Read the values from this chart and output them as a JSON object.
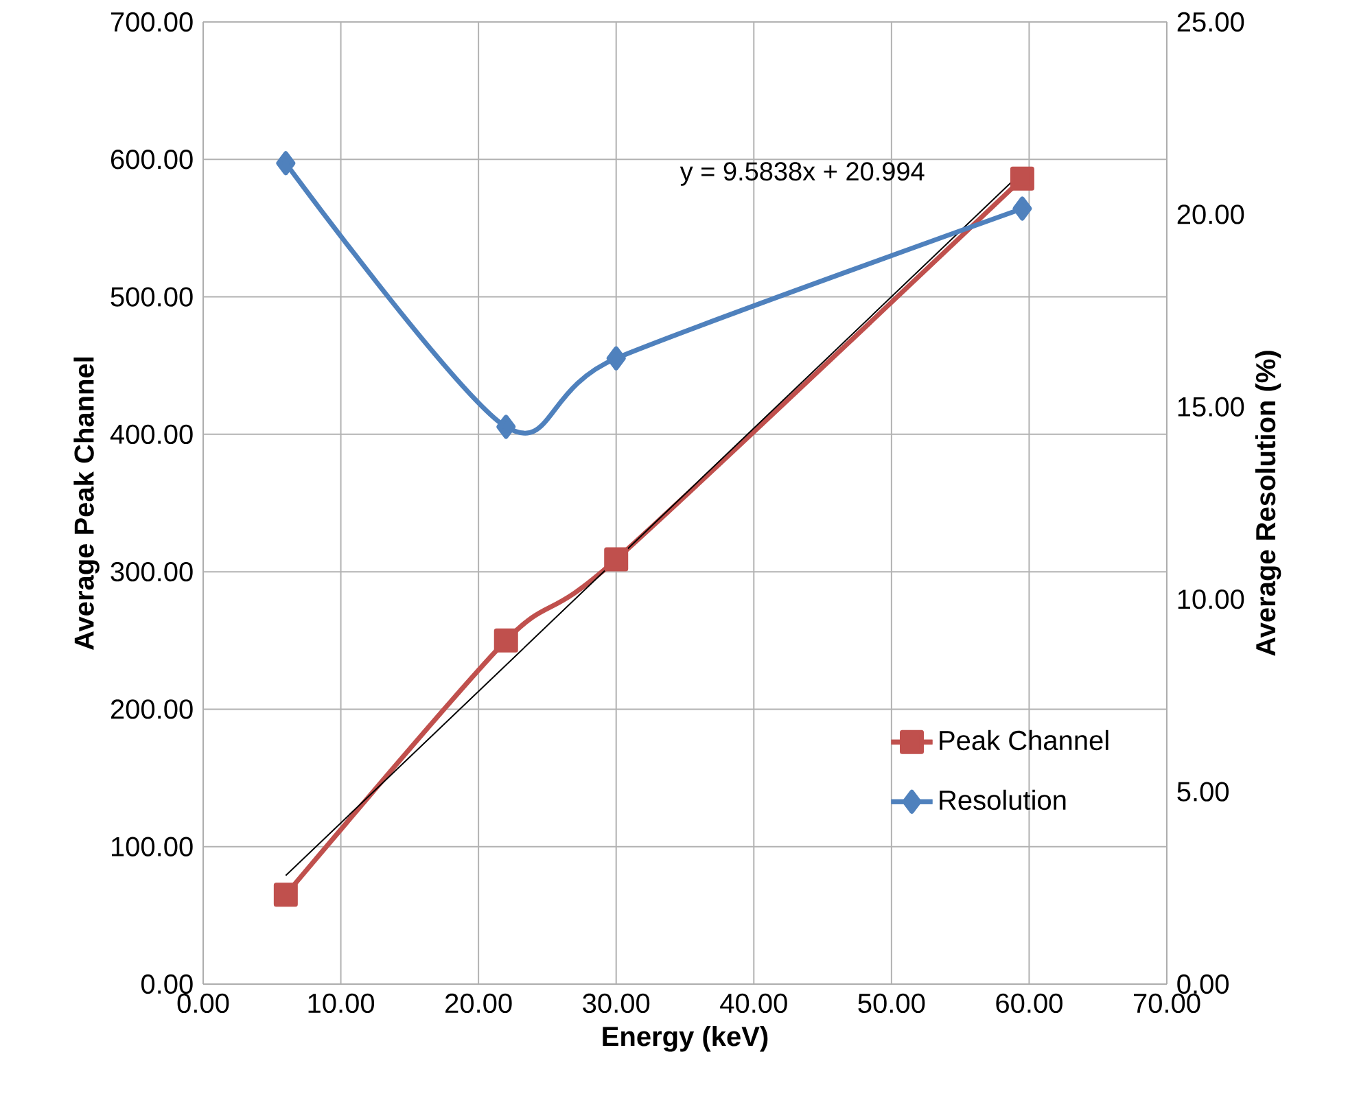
{
  "chart_data": {
    "type": "line",
    "xlabel": "Energy (keV)",
    "ylabel": "Average Peak Channel",
    "y2label": "Average Resolution (%)",
    "xlim": [
      0,
      70
    ],
    "ylim": [
      0,
      700
    ],
    "y2lim": [
      0,
      25
    ],
    "xticks": [
      {
        "value": 0,
        "label": "0.00"
      },
      {
        "value": 10,
        "label": "10.00"
      },
      {
        "value": 20,
        "label": "20.00"
      },
      {
        "value": 30,
        "label": "30.00"
      },
      {
        "value": 40,
        "label": "40.00"
      },
      {
        "value": 50,
        "label": "50.00"
      },
      {
        "value": 60,
        "label": "60.00"
      },
      {
        "value": 70,
        "label": "70.00"
      }
    ],
    "yticks": [
      {
        "value": 0,
        "label": "0.00"
      },
      {
        "value": 100,
        "label": "100.00"
      },
      {
        "value": 200,
        "label": "200.00"
      },
      {
        "value": 300,
        "label": "300.00"
      },
      {
        "value": 400,
        "label": "400.00"
      },
      {
        "value": 500,
        "label": "500.00"
      },
      {
        "value": 600,
        "label": "600.00"
      },
      {
        "value": 700,
        "label": "700.00"
      }
    ],
    "y2ticks": [
      {
        "value": 0,
        "label": "0.00"
      },
      {
        "value": 5,
        "label": "5.00"
      },
      {
        "value": 10,
        "label": "10.00"
      },
      {
        "value": 15,
        "label": "15.00"
      },
      {
        "value": 20,
        "label": "20.00"
      },
      {
        "value": 25,
        "label": "25.00"
      }
    ],
    "grid": true,
    "legend": "bottom right",
    "annotations": [
      "y = 9.5838x + 20.994"
    ],
    "series": [
      {
        "name": "Peak Channel",
        "color": "#c0504d",
        "x": [
          6,
          22,
          30,
          59.5
        ],
        "values": [
          65,
          250,
          309,
          586
        ],
        "marker": "square"
      },
      {
        "name": "Resolution",
        "color": "#4f81bd",
        "axis": "y2",
        "x": [
          6,
          22,
          30,
          59.5
        ],
        "values": [
          21.33,
          14.48,
          16.26,
          20.15
        ],
        "marker": "diamond"
      },
      {
        "type": "line",
        "color": "#000000",
        "x": [
          6,
          59.5
        ],
        "values": [
          79,
          591
        ],
        "marker": "none"
      }
    ]
  }
}
